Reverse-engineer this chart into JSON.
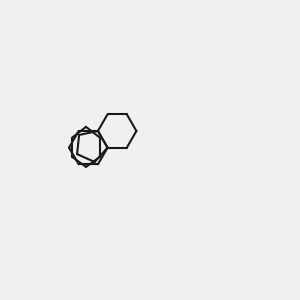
{
  "bg_color": "#f0f0f0",
  "bond_color": "#1a1a1a",
  "S_color": "#cccc00",
  "S2_color": "#cccc00",
  "N_color": "#0000cc",
  "O_color": "#cc0000",
  "Cl_color": "#00aa00",
  "H_color": "#008888",
  "figsize": [
    3.0,
    3.0
  ],
  "dpi": 100
}
